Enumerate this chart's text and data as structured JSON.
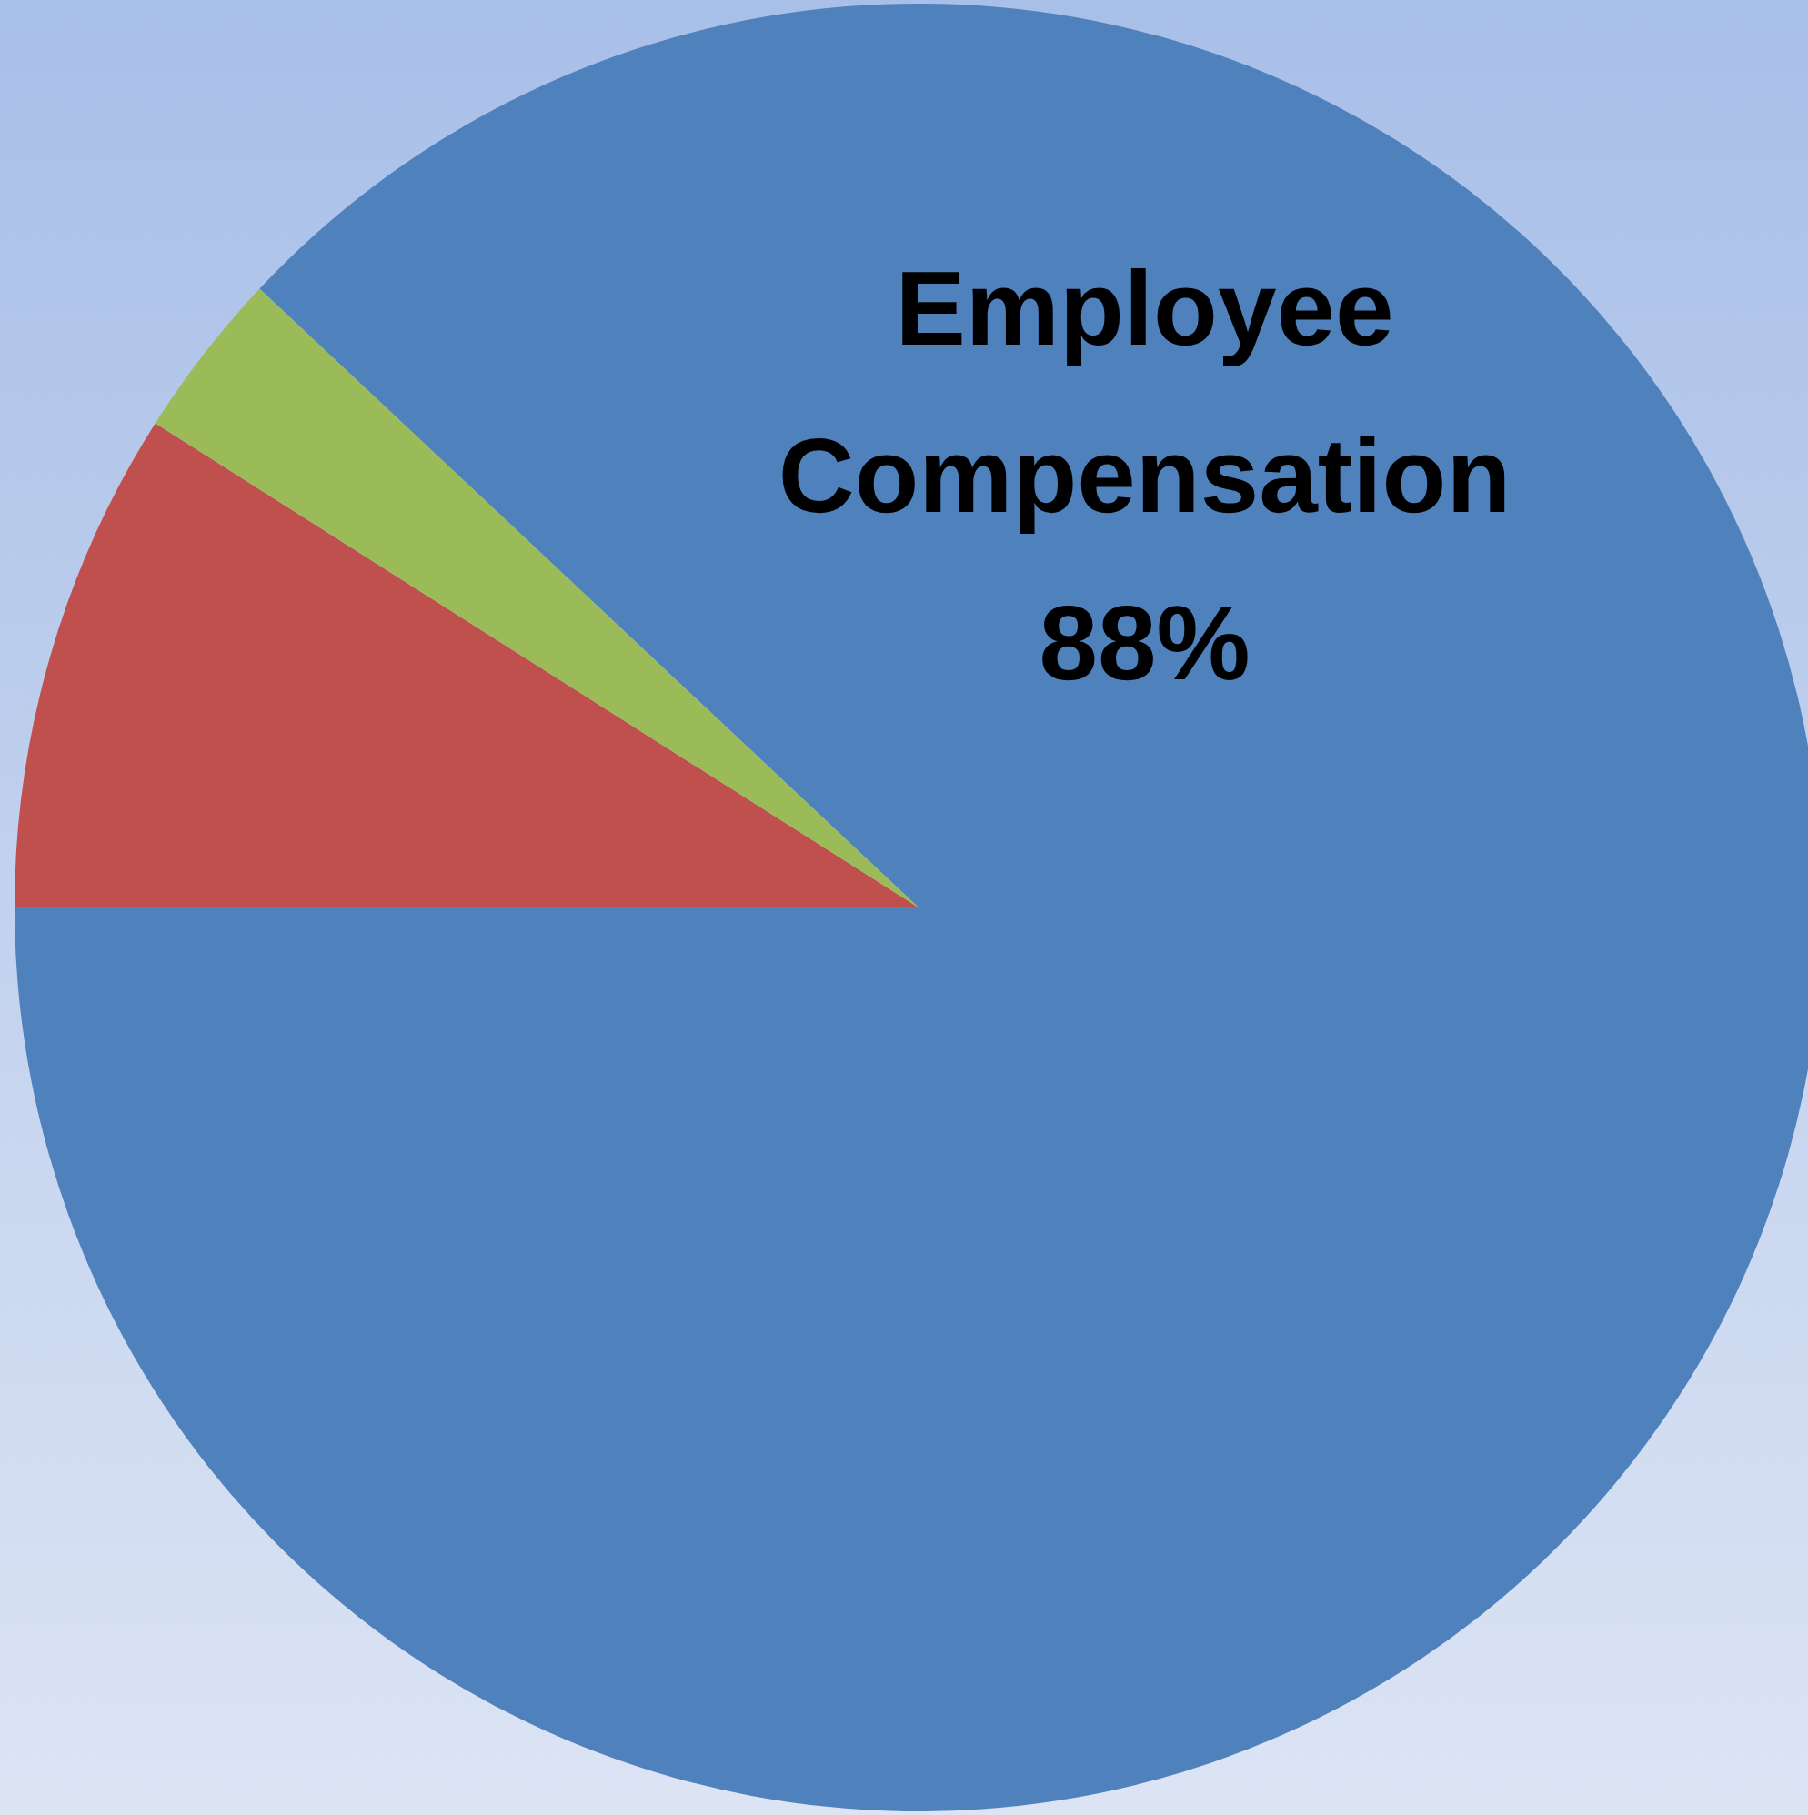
{
  "chart_data": {
    "type": "pie",
    "categories": [
      "Employee Compensation",
      null,
      null
    ],
    "values": [
      88,
      9,
      3
    ],
    "colors": [
      "#4f81bd",
      "#c0504d",
      "#9bbb59"
    ],
    "value_labels": [
      "88%",
      null,
      null
    ]
  }
}
